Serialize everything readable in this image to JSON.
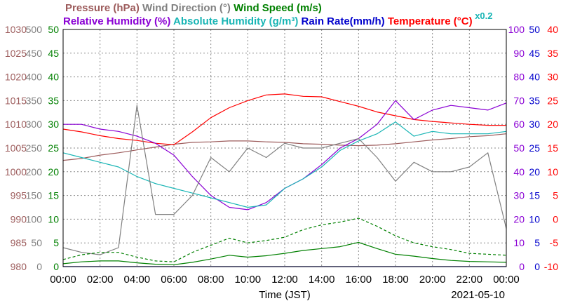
{
  "chart_data": {
    "type": "line",
    "date": "2021-05-10",
    "xlabel": "Time (JST)",
    "x_ticks": [
      "00:00",
      "02:00",
      "04:00",
      "06:00",
      "08:00",
      "10:00",
      "12:00",
      "14:00",
      "16:00",
      "18:00",
      "20:00",
      "22:00",
      "00:00"
    ],
    "grid": true,
    "legend_row1": [
      {
        "name": "Pressure (hPa)",
        "color": "#9c5b5b"
      },
      {
        "name": "Wind Direction (°)",
        "color": "#808080"
      },
      {
        "name": "Wind Speed (m/s)",
        "color": "#008000"
      }
    ],
    "legend_row2": [
      {
        "name": "Relative Humidity (%)",
        "color": "#8a00d4"
      },
      {
        "name": "Absolute Humidity (g/m³)",
        "color": "#19b5b5"
      },
      {
        "name": "Rain Rate(mm/h)",
        "color": "#0000cc"
      },
      {
        "name": "Temperature (°C)",
        "color": "#ff0000"
      },
      {
        "name": "x0.2",
        "color": "#19b5b5"
      }
    ],
    "axes": {
      "pressure": {
        "color": "#9c5b5b",
        "range": [
          980,
          1030
        ],
        "ticks": [
          "980",
          "985",
          "990",
          "995",
          "1000",
          "1005",
          "1010",
          "1015",
          "1020",
          "1025",
          "1030"
        ]
      },
      "wind_direction": {
        "color": "#808080",
        "range": [
          0,
          500
        ],
        "ticks": [
          "0",
          "50",
          "100",
          "150",
          "200",
          "250",
          "300",
          "350",
          "400",
          "450",
          "500"
        ]
      },
      "wind_speed": {
        "color": "#008000",
        "range": [
          0,
          50
        ],
        "ticks": [
          "0",
          "5",
          "10",
          "15",
          "20",
          "25",
          "30",
          "35",
          "40",
          "45",
          "50"
        ]
      },
      "relative_humidity": {
        "color": "#8a00d4",
        "range": [
          0,
          100
        ],
        "ticks": [
          "0",
          "10",
          "20",
          "30",
          "40",
          "50",
          "60",
          "70",
          "80",
          "90",
          "100"
        ]
      },
      "rain_rate": {
        "color": "#0000cc",
        "range": [
          0,
          50
        ],
        "ticks": [
          "0",
          "5",
          "10",
          "15",
          "20",
          "25",
          "30",
          "35",
          "40",
          "45",
          "50"
        ]
      },
      "temperature": {
        "color": "#ff0000",
        "range": [
          -10,
          40
        ],
        "ticks": [
          "-10",
          "-5",
          "0",
          "5",
          "10",
          "15",
          "20",
          "25",
          "30",
          "35",
          "40"
        ]
      }
    },
    "hours": [
      0,
      1,
      2,
      3,
      4,
      5,
      6,
      7,
      8,
      9,
      10,
      11,
      12,
      13,
      14,
      15,
      16,
      17,
      18,
      19,
      20,
      21,
      22,
      23,
      24
    ],
    "series": [
      {
        "name": "Pressure (hPa)",
        "key": "pressure",
        "color": "#9c5b5b",
        "axis": "pressure",
        "values": [
          1002.4,
          1002.8,
          1003.5,
          1004.0,
          1004.6,
          1005.2,
          1005.8,
          1006.2,
          1006.3,
          1006.5,
          1006.5,
          1006.3,
          1006.2,
          1005.9,
          1005.8,
          1005.6,
          1005.5,
          1005.6,
          1005.9,
          1006.3,
          1006.7,
          1007.0,
          1007.4,
          1007.6,
          1008.0
        ]
      },
      {
        "name": "Temperature (°C)",
        "key": "temperature",
        "color": "#ff0000",
        "axis": "temperature",
        "values": [
          19.0,
          18.4,
          17.6,
          17.0,
          16.6,
          16.0,
          15.7,
          18.4,
          21.4,
          23.5,
          25.0,
          26.2,
          26.4,
          25.9,
          25.8,
          24.8,
          23.8,
          22.6,
          21.8,
          21.0,
          20.6,
          20.3,
          20.0,
          19.8,
          19.8
        ]
      },
      {
        "name": "Relative Humidity (%)",
        "key": "relative_humidity",
        "color": "#8a00d4",
        "axis": "relative_humidity",
        "values": [
          60,
          60,
          58,
          57,
          55,
          52,
          47,
          38,
          30,
          25,
          24,
          27,
          33,
          37,
          43,
          50,
          54,
          60,
          70,
          62,
          66,
          68,
          67,
          66,
          69
        ]
      },
      {
        "name": "Absolute Humidity (g/m³)",
        "key": "absolute_humidity",
        "color": "#19b5b5",
        "axis": "relative_humidity",
        "values": [
          48,
          46,
          44,
          42,
          38,
          35,
          33,
          31,
          29,
          27,
          25,
          26,
          33,
          37,
          42,
          49,
          53,
          56,
          61,
          55,
          57,
          56,
          56,
          56,
          57
        ]
      },
      {
        "name": "Wind Direction (°)",
        "key": "wind_direction",
        "color": "#808080",
        "axis": "wind_direction",
        "values": [
          40,
          30,
          25,
          40,
          340,
          110,
          110,
          150,
          230,
          200,
          250,
          230,
          260,
          250,
          250,
          260,
          270,
          230,
          180,
          220,
          200,
          200,
          210,
          240,
          80
        ]
      },
      {
        "name": "Wind Speed (m/s)",
        "key": "wind_speed",
        "color": "#008000",
        "axis": "wind_speed",
        "values": [
          0.6,
          1.0,
          1.2,
          1.2,
          0.8,
          0.5,
          0.4,
          0.9,
          1.6,
          2.4,
          2.0,
          2.3,
          2.8,
          3.4,
          3.8,
          4.2,
          5.1,
          3.8,
          2.6,
          2.2,
          1.7,
          1.3,
          1.1,
          1.0,
          0.9
        ]
      },
      {
        "name": "Wind Speed gust",
        "key": "wind_gust",
        "color": "#008000",
        "axis": "wind_speed",
        "dashed": true,
        "values": [
          1.5,
          2.5,
          3.0,
          3.0,
          2.0,
          1.2,
          1.0,
          3.0,
          4.5,
          6.0,
          5.0,
          5.5,
          6.2,
          7.8,
          8.8,
          9.4,
          10.2,
          8.5,
          6.5,
          5.0,
          4.2,
          3.6,
          2.8,
          2.6,
          2.4
        ]
      },
      {
        "name": "Rain Rate(mm/h)",
        "key": "rain_rate",
        "color": "#0000cc",
        "axis": "rain_rate",
        "values": [
          0,
          0,
          0,
          0,
          0,
          0,
          0,
          0,
          0,
          0,
          0,
          0,
          0,
          0,
          0,
          0,
          0,
          0,
          0,
          0,
          0,
          0,
          0,
          0,
          0
        ]
      }
    ]
  }
}
